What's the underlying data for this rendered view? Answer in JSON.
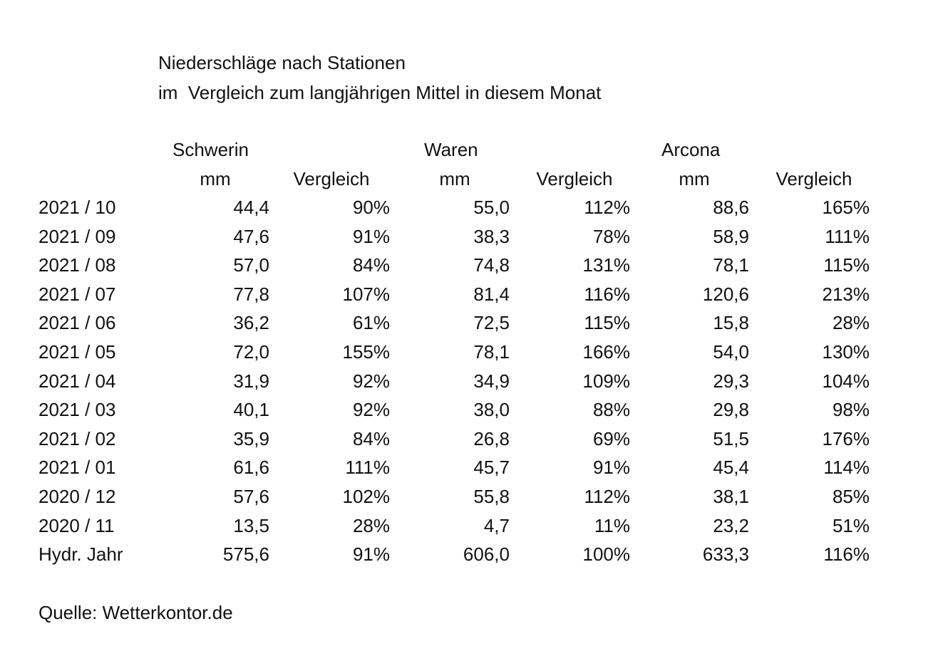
{
  "title": {
    "line1": "Niederschläge nach Stationen",
    "line2": "im  Vergleich zum langjährigen Mittel in diesem Monat"
  },
  "table": {
    "stations": [
      "Schwerin",
      "Waren",
      "Arcona"
    ],
    "units": [
      "mm",
      "Vergleich",
      "mm",
      "Vergleich",
      "mm",
      "Vergleich"
    ],
    "rows": [
      [
        "2021 / 10",
        "44,4",
        "90%",
        "55,0",
        "112%",
        "88,6",
        "165%"
      ],
      [
        "2021 / 09",
        "47,6",
        "91%",
        "38,3",
        "78%",
        "58,9",
        "111%"
      ],
      [
        "2021 / 08",
        "57,0",
        "84%",
        "74,8",
        "131%",
        "78,1",
        "115%"
      ],
      [
        "2021 / 07",
        "77,8",
        "107%",
        "81,4",
        "116%",
        "120,6",
        "213%"
      ],
      [
        "2021 / 06",
        "36,2",
        "61%",
        "72,5",
        "115%",
        "15,8",
        "28%"
      ],
      [
        "2021 / 05",
        "72,0",
        "155%",
        "78,1",
        "166%",
        "54,0",
        "130%"
      ],
      [
        "2021 / 04",
        "31,9",
        "92%",
        "34,9",
        "109%",
        "29,3",
        "104%"
      ],
      [
        "2021 / 03",
        "40,1",
        "92%",
        "38,0",
        "88%",
        "29,8",
        "98%"
      ],
      [
        "2021 / 02",
        "35,9",
        "84%",
        "26,8",
        "69%",
        "51,5",
        "176%"
      ],
      [
        "2021 / 01",
        "61,6",
        "111%",
        "45,7",
        "91%",
        "45,4",
        "114%"
      ],
      [
        "2020 / 12",
        "57,6",
        "102%",
        "55,8",
        "112%",
        "38,1",
        "85%"
      ],
      [
        "2020 / 11",
        "13,5",
        "28%",
        "4,7",
        "11%",
        "23,2",
        "51%"
      ],
      [
        "Hydr. Jahr",
        "575,6",
        "91%",
        "606,0",
        "100%",
        "633,3",
        "116%"
      ]
    ]
  },
  "source": "Quelle: Wetterkontor.de"
}
